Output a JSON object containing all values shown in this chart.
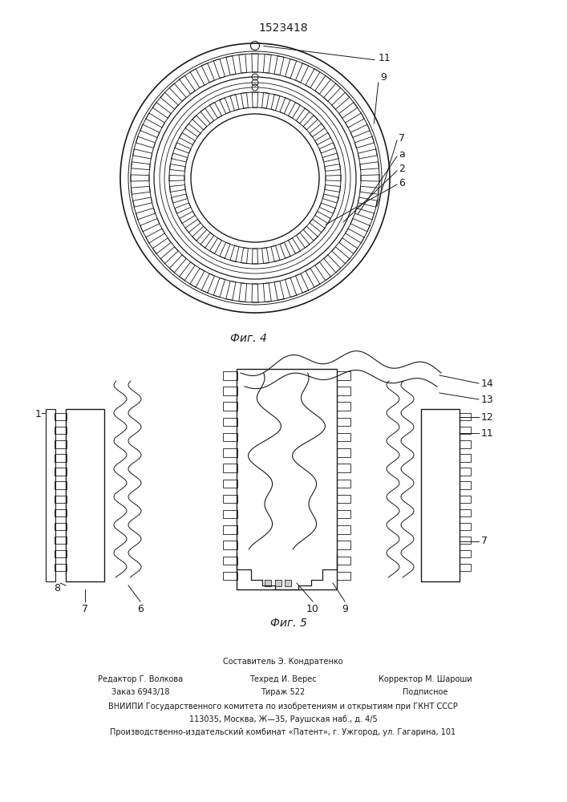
{
  "title": "1523418",
  "fig4_label": "Фиг. 4",
  "fig5_label": "Фиг. 5",
  "bg_color": "#ffffff",
  "line_color": "#1a1a1a",
  "footer_vniipi": "ВНИИПИ Государственного комитета по изобретениям и открытиям при ГКНТ СССР",
  "footer_addr1": "113035, Москва, Ж—35, Раушская наб., д. 4/5",
  "footer_addr2": "Производственно-издательский комбинат «Патент», г. Ужгород, ул. Гагарина, 101"
}
